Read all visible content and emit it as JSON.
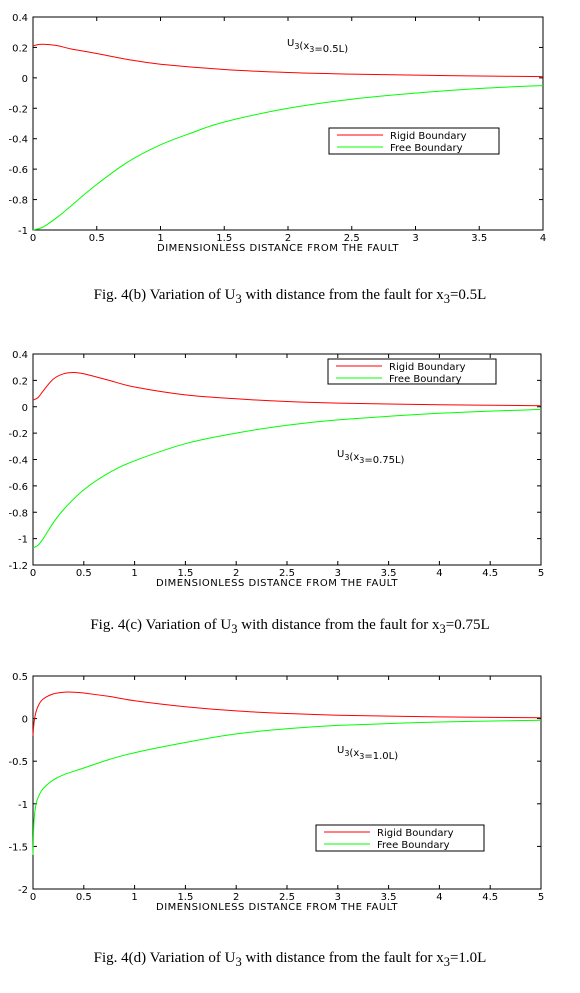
{
  "colors": {
    "rigid": "#ff0000",
    "free": "#00ff00",
    "axis": "#000000"
  },
  "chart_data": [
    {
      "type": "line",
      "title": "",
      "xlabel": "DIMENSIONLESS DISTANCE FROM THE FAULT",
      "ylabel": "",
      "xlim": [
        0,
        4
      ],
      "ylim": [
        -1,
        0.4
      ],
      "xticks": [
        "0",
        "0.5",
        "1",
        "1.5",
        "2",
        "2.5",
        "3",
        "3.5",
        "4"
      ],
      "yticks": [
        "0.4",
        "0.2",
        "0",
        "-0.2",
        "-0.4",
        "-0.6",
        "-0.8",
        "-1"
      ],
      "annotation": {
        "label": "U",
        "sub1": "3",
        "mid": "(x",
        "sub2": "3",
        "tail": "=0.5L)"
      },
      "legend_position": "center-right",
      "series": [
        {
          "name": "Rigid Boundary",
          "color": "#ff0000",
          "x": [
            0,
            0.05,
            0.1,
            0.2,
            0.3,
            0.5,
            0.75,
            1.0,
            1.5,
            2.0,
            2.5,
            3.0,
            3.5,
            4.0
          ],
          "y": [
            0.21,
            0.22,
            0.22,
            0.21,
            0.19,
            0.16,
            0.12,
            0.09,
            0.055,
            0.035,
            0.025,
            0.018,
            0.012,
            0.008
          ]
        },
        {
          "name": "Free Boundary",
          "color": "#00ff00",
          "x": [
            0,
            0.05,
            0.1,
            0.2,
            0.3,
            0.5,
            0.75,
            1.0,
            1.25,
            1.5,
            2.0,
            2.5,
            3.0,
            3.5,
            4.0
          ],
          "y": [
            -1.0,
            -0.99,
            -0.97,
            -0.91,
            -0.84,
            -0.7,
            -0.55,
            -0.44,
            -0.36,
            -0.29,
            -0.2,
            -0.14,
            -0.1,
            -0.07,
            -0.05
          ]
        }
      ]
    },
    {
      "type": "line",
      "title": "",
      "xlabel": "DIMENSIONLESS DISTANCE FROM THE FAULT",
      "ylabel": "",
      "xlim": [
        0,
        5
      ],
      "ylim": [
        -1.2,
        0.4
      ],
      "xticks": [
        "0",
        "0.5",
        "1",
        "1.5",
        "2",
        "2.5",
        "3",
        "3.5",
        "4",
        "4.5",
        "5"
      ],
      "yticks": [
        "0.4",
        "0.2",
        "0",
        "-0.2",
        "-0.4",
        "-0.6",
        "-0.8",
        "-1",
        "-1.2"
      ],
      "annotation": {
        "label": "U",
        "sub1": "3",
        "mid": "(x",
        "sub2": "3",
        "tail": "=0.75L)"
      },
      "legend_position": "top-right",
      "series": [
        {
          "name": "Rigid Boundary",
          "color": "#ff0000",
          "x": [
            0,
            0.05,
            0.1,
            0.2,
            0.3,
            0.4,
            0.5,
            0.75,
            1.0,
            1.5,
            2.0,
            2.5,
            3.0,
            4.0,
            5.0
          ],
          "y": [
            0.05,
            0.07,
            0.12,
            0.21,
            0.25,
            0.26,
            0.25,
            0.2,
            0.15,
            0.09,
            0.06,
            0.04,
            0.028,
            0.015,
            0.008
          ]
        },
        {
          "name": "Free Boundary",
          "color": "#00ff00",
          "x": [
            0,
            0.05,
            0.1,
            0.2,
            0.3,
            0.5,
            0.75,
            1.0,
            1.5,
            2.0,
            2.5,
            3.0,
            4.0,
            5.0
          ],
          "y": [
            -1.07,
            -1.05,
            -1.0,
            -0.88,
            -0.78,
            -0.63,
            -0.5,
            -0.41,
            -0.28,
            -0.2,
            -0.14,
            -0.1,
            -0.05,
            -0.02
          ]
        }
      ]
    },
    {
      "type": "line",
      "title": "",
      "xlabel": "DIMENSIONLESS DISTANCE FROM THE FAULT",
      "ylabel": "",
      "xlim": [
        0,
        5
      ],
      "ylim": [
        -2,
        0.5
      ],
      "xticks": [
        "0",
        "0.5",
        "1",
        "1.5",
        "2",
        "2.5",
        "3",
        "3.5",
        "4",
        "4.5",
        "5"
      ],
      "yticks": [
        "0.5",
        "0",
        "-0.5",
        "-1",
        "-1.5",
        "-2"
      ],
      "annotation": {
        "label": "U",
        "sub1": "3",
        "mid": "(x",
        "sub2": "3",
        "tail": "=1.0L)"
      },
      "legend_position": "center-right",
      "series": [
        {
          "name": "Rigid Boundary",
          "color": "#ff0000",
          "x": [
            0,
            0.01,
            0.03,
            0.06,
            0.1,
            0.2,
            0.3,
            0.4,
            0.5,
            0.75,
            1.0,
            1.5,
            2.0,
            2.5,
            3.0,
            4.0,
            5.0
          ],
          "y": [
            -0.2,
            -0.05,
            0.08,
            0.17,
            0.23,
            0.29,
            0.31,
            0.31,
            0.3,
            0.26,
            0.21,
            0.14,
            0.09,
            0.06,
            0.04,
            0.02,
            0.01
          ]
        },
        {
          "name": "Free Boundary",
          "color": "#00ff00",
          "x": [
            0,
            0.01,
            0.03,
            0.06,
            0.1,
            0.2,
            0.3,
            0.5,
            0.75,
            1.0,
            1.5,
            2.0,
            2.5,
            3.0,
            4.0,
            5.0
          ],
          "y": [
            -1.6,
            -1.2,
            -1.0,
            -0.9,
            -0.82,
            -0.72,
            -0.66,
            -0.58,
            -0.48,
            -0.4,
            -0.28,
            -0.18,
            -0.12,
            -0.08,
            -0.04,
            -0.02
          ]
        }
      ]
    }
  ],
  "captions": [
    {
      "prefix": "Fig. 4(b) Variation of  U",
      "sub": "3",
      "middle": " with  distance  from  the  fault  for  x",
      "sub2": "3",
      "suffix": "=0.5L"
    },
    {
      "prefix": "Fig. 4(c) Variation of  U",
      "sub": "3",
      "middle": "  with  distance  from  the fault  for  x",
      "sub2": "3",
      "suffix": "=0.75L"
    },
    {
      "prefix": "Fig. 4(d) Variation of   U",
      "sub": "3",
      "middle": " with  distance  from  the  fault  for  x",
      "sub2": "3",
      "suffix": "=1.0L"
    }
  ]
}
